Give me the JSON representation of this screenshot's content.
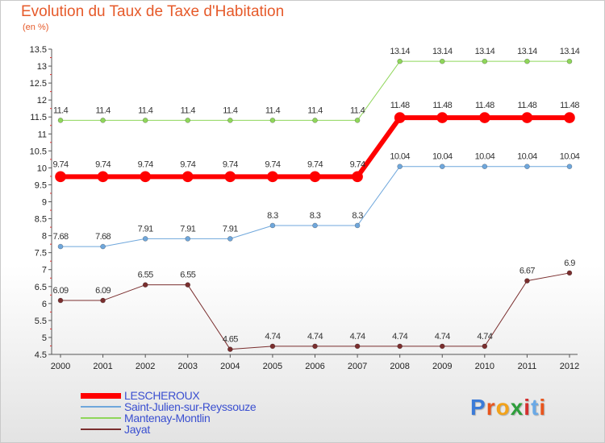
{
  "title": "Evolution du Taux de Taxe d'Habitation",
  "unit_label": "(en %)",
  "logo": {
    "text": "Proxiti",
    "colors": [
      "#3b7bd8",
      "#e8551d",
      "#f2a21a",
      "#2e9e3c",
      "#d32f2f",
      "#6aa9e6",
      "#e8551d"
    ]
  },
  "chart_data": {
    "type": "line",
    "title": "Evolution du Taux de Taxe d'Habitation",
    "ylabel": "(en %)",
    "x": [
      "2000",
      "2001",
      "2002",
      "2003",
      "2004",
      "2005",
      "2006",
      "2007",
      "2008",
      "2009",
      "2010",
      "2011",
      "2012"
    ],
    "ylim": [
      4.5,
      13.5
    ],
    "yticks": [
      "4.5",
      "5",
      "5.5",
      "6",
      "6.5",
      "7",
      "7.5",
      "8",
      "8.5",
      "9",
      "9.5",
      "10",
      "10.5",
      "11",
      "11.5",
      "12",
      "12.5",
      "13",
      "13.5"
    ],
    "grid": false,
    "legend": "bottom-left",
    "series": [
      {
        "name": "Mantenay-Montlin",
        "color": "#8fd65a",
        "width": 1,
        "values": [
          11.4,
          11.4,
          11.4,
          11.4,
          11.4,
          11.4,
          11.4,
          11.4,
          13.14,
          13.14,
          13.14,
          13.14,
          13.14
        ],
        "labels": [
          "11.4",
          "11.4",
          "11.4",
          "11.4",
          "11.4",
          "11.4",
          "11.4",
          "11.4",
          "13.14",
          "13.14",
          "13.14",
          "13.14",
          "13.14"
        ]
      },
      {
        "name": "LESCHEROUX",
        "color": "#ff0000",
        "width": 6,
        "values": [
          9.74,
          9.74,
          9.74,
          9.74,
          9.74,
          9.74,
          9.74,
          9.74,
          11.48,
          11.48,
          11.48,
          11.48,
          11.48
        ],
        "labels": [
          "9.74",
          "9.74",
          "9.74",
          "9.74",
          "9.74",
          "9.74",
          "9.74",
          "9.74",
          "11.48",
          "11.48",
          "11.48",
          "11.48",
          "11.48"
        ]
      },
      {
        "name": "Saint-Julien-sur-Reyssouze",
        "color": "#6fa7dc",
        "width": 1,
        "values": [
          7.68,
          7.68,
          7.91,
          7.91,
          7.91,
          8.3,
          8.3,
          8.3,
          10.04,
          10.04,
          10.04,
          10.04,
          10.04
        ],
        "labels": [
          "7.68",
          "7.68",
          "7.91",
          "7.91",
          "7.91",
          "8.3",
          "8.3",
          "8.3",
          "10.04",
          "10.04",
          "10.04",
          "10.04",
          "10.04"
        ]
      },
      {
        "name": "Jayat",
        "color": "#7a2e2e",
        "width": 1,
        "values": [
          6.09,
          6.09,
          6.55,
          6.55,
          4.65,
          4.74,
          4.74,
          4.74,
          4.74,
          4.74,
          4.74,
          6.67,
          6.9
        ],
        "labels": [
          "6.09",
          "6.09",
          "6.55",
          "6.55",
          "4.65",
          "4.74",
          "4.74",
          "4.74",
          "4.74",
          "4.74",
          "4.74",
          "6.67",
          "6.9"
        ]
      }
    ],
    "legend_order": [
      "LESCHEROUX",
      "Saint-Julien-sur-Reyssouze",
      "Mantenay-Montlin",
      "Jayat"
    ]
  }
}
